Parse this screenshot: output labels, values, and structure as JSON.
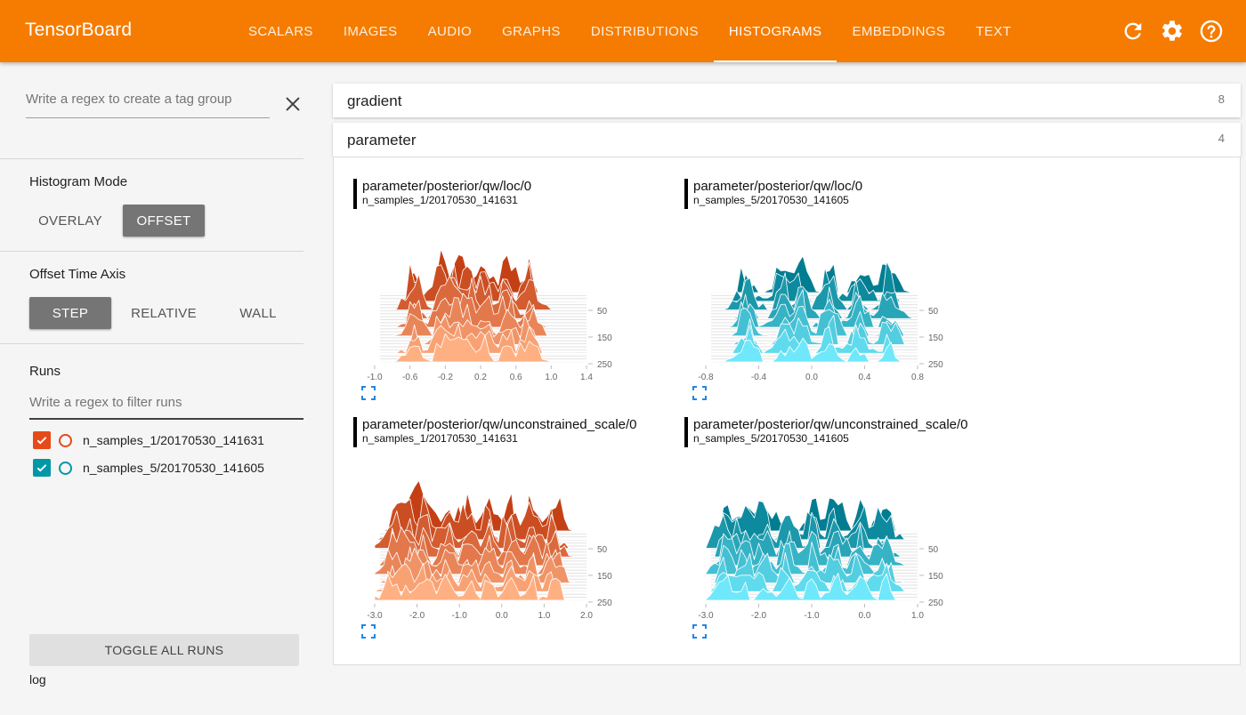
{
  "app": {
    "title": "TensorBoard"
  },
  "nav": {
    "tabs": [
      "SCALARS",
      "IMAGES",
      "AUDIO",
      "GRAPHS",
      "DISTRIBUTIONS",
      "HISTOGRAMS",
      "EMBEDDINGS",
      "TEXT"
    ],
    "active": "HISTOGRAMS",
    "icons": [
      "refresh-icon",
      "settings-gear-icon",
      "help-icon"
    ]
  },
  "sidebar": {
    "tag_filter_placeholder": "Write a regex to create a tag group",
    "histogram_mode": {
      "title": "Histogram Mode",
      "options": [
        "OVERLAY",
        "OFFSET"
      ],
      "selected": "OFFSET"
    },
    "offset_time_axis": {
      "title": "Offset Time Axis",
      "options": [
        "STEP",
        "RELATIVE",
        "WALL"
      ],
      "selected": "STEP"
    },
    "runs": {
      "title": "Runs",
      "filter_placeholder": "Write a regex to filter runs",
      "items": [
        {
          "name": "n_samples_1/20170530_141631",
          "color": "#e64a19",
          "checked": true
        },
        {
          "name": "n_samples_5/20170530_141605",
          "color": "#0097a7",
          "checked": true
        }
      ]
    },
    "toggle_all": "TOGGLE ALL RUNS",
    "log_dir": "log"
  },
  "categories": [
    {
      "name": "gradient",
      "count": "8"
    },
    {
      "name": "parameter",
      "count": "4"
    }
  ],
  "charts": [
    {
      "tag": "parameter/posterior/qw/loc/0",
      "run": "n_samples_1/20170530_141631",
      "palette": "orange",
      "chart_data": {
        "type": "area",
        "mode": "offset",
        "x_ticks": [
          "-1.0",
          "-0.6",
          "-0.2",
          "0.2",
          "0.6",
          "1.0",
          "1.4"
        ],
        "y_ticks": [
          "50",
          "150",
          "250"
        ],
        "xlim": [
          -1.0,
          1.4
        ],
        "peaks": [
          -0.55,
          -0.25,
          -0.1,
          0.05,
          0.25,
          0.5,
          0.75
        ]
      }
    },
    {
      "tag": "parameter/posterior/qw/loc/0",
      "run": "n_samples_5/20170530_141605",
      "palette": "cyan",
      "chart_data": {
        "type": "area",
        "mode": "offset",
        "x_ticks": [
          "-0.8",
          "-0.4",
          "0.0",
          "0.4",
          "0.8"
        ],
        "y_ticks": [
          "50",
          "150",
          "250"
        ],
        "xlim": [
          -0.8,
          1.0
        ],
        "peaks": [
          -0.45,
          -0.15,
          0.0,
          0.25,
          0.5,
          0.75
        ]
      }
    },
    {
      "tag": "parameter/posterior/qw/unconstrained_scale/0",
      "run": "n_samples_1/20170530_141631",
      "palette": "orange",
      "chart_data": {
        "type": "area",
        "mode": "offset",
        "x_ticks": [
          "-3.0",
          "-2.0",
          "-1.0",
          "0.0",
          "1.0",
          "2.0"
        ],
        "y_ticks": [
          "50",
          "150",
          "250"
        ],
        "xlim": [
          -3.0,
          2.0
        ],
        "peaks": [
          -2.6,
          -2.2,
          -1.8,
          -1.3,
          -0.8,
          -0.3,
          0.2,
          0.7,
          1.2
        ]
      }
    },
    {
      "tag": "parameter/posterior/qw/unconstrained_scale/0",
      "run": "n_samples_5/20170530_141605",
      "palette": "cyan",
      "chart_data": {
        "type": "area",
        "mode": "offset",
        "x_ticks": [
          "-3.0",
          "-2.0",
          "-1.0",
          "0.0",
          "1.0"
        ],
        "y_ticks": [
          "50",
          "150",
          "250"
        ],
        "xlim": [
          -3.0,
          1.4
        ],
        "peaks": [
          -2.6,
          -2.2,
          -1.8,
          -1.3,
          -0.8,
          -0.3,
          0.2,
          0.7
        ]
      }
    }
  ]
}
